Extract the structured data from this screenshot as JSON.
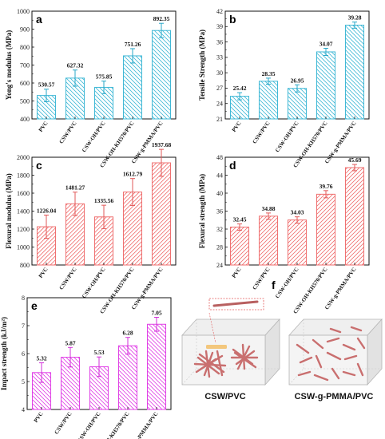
{
  "chart_data": [
    {
      "id": "a",
      "panel_label": "a",
      "type": "bar",
      "categories": [
        "PVC",
        "CSW/PVC",
        "CSW-OH/PVC",
        "CSW-OH-KH570/PVC",
        "CSW-g-PMMA/PVC"
      ],
      "values": [
        530.57,
        627.32,
        575.85,
        751.26,
        892.35
      ],
      "value_labels": [
        "530.57",
        "627.32",
        "575.85",
        "751.26",
        "892.35"
      ],
      "errors": [
        35,
        45,
        35,
        40,
        40
      ],
      "ylabel": "Yong's modulus (MPa)",
      "ylim": [
        400,
        1000
      ],
      "yticks": [
        400,
        500,
        600,
        700,
        800,
        900,
        1000
      ],
      "color": "#3fb8d6",
      "error_color": "#2aa8c8",
      "hatch": "backslash"
    },
    {
      "id": "b",
      "panel_label": "b",
      "type": "bar",
      "categories": [
        "PVC",
        "CSW/PVC",
        "CSW-OH/PVC",
        "CSW-OH-KH570/PVC",
        "CSW-g-PMMA/PVC"
      ],
      "values": [
        25.42,
        28.35,
        26.95,
        34.07,
        39.28
      ],
      "value_labels": [
        "25.42",
        "28.35",
        "26.95",
        "34.07",
        "39.28"
      ],
      "errors": [
        0.7,
        0.6,
        0.7,
        0.7,
        0.6
      ],
      "ylabel": "Tensile Strength (MPa)",
      "ylim": [
        21,
        42
      ],
      "yticks": [
        21,
        24,
        27,
        30,
        33,
        36,
        39,
        42
      ],
      "color": "#3fb8d6",
      "error_color": "#2aa8c8",
      "hatch": "backslash"
    },
    {
      "id": "c",
      "panel_label": "c",
      "type": "bar",
      "categories": [
        "PVC",
        "CSW/PVC",
        "CSW-OH/PVC",
        "CSW-OH-KH570/PVC",
        "CSW-g-PMMA/PVC"
      ],
      "values": [
        1226.04,
        1481.27,
        1335.56,
        1612.79,
        1937.68
      ],
      "value_labels": [
        "1226.04",
        "1481.27",
        "1335.56",
        "1612.79",
        "1937.68"
      ],
      "errors": [
        130,
        130,
        130,
        150,
        150
      ],
      "ylabel": "Flexural modulus (MPa)",
      "ylim": [
        800,
        2000
      ],
      "yticks": [
        800,
        1000,
        1200,
        1400,
        1600,
        1800,
        2000
      ],
      "color": "#ef6f6f",
      "error_color": "#e25858",
      "hatch": "slash"
    },
    {
      "id": "d",
      "panel_label": "d",
      "type": "bar",
      "categories": [
        "PVC",
        "CSW/PVC",
        "CSW-OH/PVC",
        "CSW-OH-KH570/PVC",
        "CSW-g-PMMA/PVC"
      ],
      "values": [
        32.45,
        34.88,
        34.03,
        39.76,
        45.69
      ],
      "value_labels": [
        "32.45",
        "34.88",
        "34.03",
        "39.76",
        "45.69"
      ],
      "errors": [
        0.7,
        0.7,
        0.7,
        0.8,
        0.7
      ],
      "ylabel": "Flexural strength (MPa)",
      "ylim": [
        24,
        48
      ],
      "yticks": [
        24,
        28,
        32,
        36,
        40,
        44,
        48
      ],
      "color": "#ef6f6f",
      "error_color": "#e25858",
      "hatch": "slash"
    },
    {
      "id": "e",
      "panel_label": "e",
      "type": "bar",
      "categories": [
        "PVC",
        "CSW/PVC",
        "CSW-OH/PVC",
        "CSW-OH-KH570/PVC",
        "CSW-g-PMMA/PVC"
      ],
      "values": [
        5.32,
        5.87,
        5.53,
        6.28,
        7.05
      ],
      "value_labels": [
        "5.32",
        "5.87",
        "5.53",
        "6.28",
        "7.05"
      ],
      "errors": [
        0.35,
        0.35,
        0.35,
        0.3,
        0.25
      ],
      "ylabel": "Impact strength (kJ/m²)",
      "ylim": [
        4,
        8
      ],
      "yticks": [
        4,
        5,
        6,
        7,
        8
      ],
      "color": "#e040e6",
      "error_color": "#d22fd8",
      "hatch": "backslash"
    }
  ],
  "schematic": {
    "panel_label": "f",
    "left_caption": "CSW/PVC",
    "right_caption": "CSW-g-PMMA/PVC",
    "rod_color": "#c96f6f",
    "box_color": "#c8c8c8"
  }
}
